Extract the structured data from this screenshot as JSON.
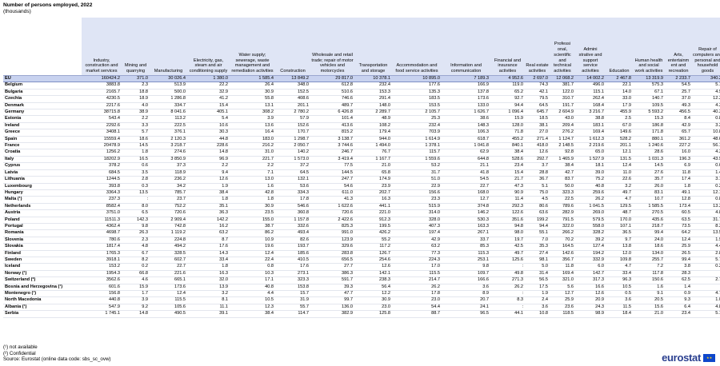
{
  "title": "Number of persons employed, 2022",
  "subtitle": "(thousands)",
  "columns": [
    "Industry, construction and market services",
    "Mining and quarrying",
    "Manufacturing",
    "Electricity, gas, steam and air conditioning supply",
    "Water supply; sewerage, waste management and remediation activities",
    "Construction",
    "Wholesale and retail trade; repair of motor vehicles and motorcycles",
    "Transportation and storage",
    "Accommodation and food service activities",
    "Information and communication",
    "Financial and insurance activities",
    "Real estate activities",
    "Professi onal, scientific and technical activities",
    "Admini strative and support service activities",
    "Education",
    "Human health and social work activities",
    "Arts, entertainm ent and recreation",
    "Repair of computers and personal and household goods",
    "Other personal service activities"
  ],
  "rows": [
    {
      "name": "EU",
      "values": [
        "160424.2",
        "371.0",
        "30 026.4",
        "1 380.0",
        "1 585.4",
        "13 849.2",
        "29 817.0",
        "10 378.1",
        "10 895.0",
        "7 189.3",
        "4 952.6",
        "2 697.0",
        "12 068.2",
        "14 002.2",
        "2 467.8",
        "13 319.9",
        "2 233.7",
        "340.2",
        "2 848.0"
      ]
    },
    {
      "name": "Belgium",
      "values": [
        "3883.8",
        "2.3",
        "513.9",
        "22.2",
        "26.4",
        "348.0",
        "612.8",
        "232.4",
        "177.6",
        "166.9",
        "119.0",
        "74.3",
        "381.7",
        "496.0",
        "22.1",
        "575.3",
        "54.5",
        "5.1",
        "53.1"
      ]
    },
    {
      "name": "Bulgaria",
      "values": [
        "2165.7",
        "18.8",
        "500.0",
        "32.9",
        "30.9",
        "152.5",
        "510.6",
        "153.3",
        "135.3",
        "137.8",
        "65.2",
        "42.1",
        "122.0",
        "115.1",
        "14.0",
        "67.1",
        "25.7",
        "4.9",
        "37.4"
      ]
    },
    {
      "name": "Czechia",
      "values": [
        "4230.5",
        "18.9",
        "1 286.8",
        "41.2",
        "55.8",
        "408.6",
        "746.6",
        "291.4",
        "183.5",
        "173.6",
        "92.7",
        "79.5",
        "310.7",
        "262.4",
        "33.0",
        "140.7",
        "37.0",
        "12.3",
        "55.6"
      ]
    },
    {
      "name": "Denmark",
      "values": [
        "2217.6",
        "4.0",
        "334.7",
        "15.4",
        "13.1",
        "201.1",
        "489.7",
        "148.0",
        "153.5",
        "133.0",
        "94.4",
        "64.5",
        "191.7",
        "168.4",
        "17.9",
        "109.5",
        "49.3",
        "4.3",
        "25.0"
      ]
    },
    {
      "name": "Germany",
      "values": [
        "38715.8",
        "38.9",
        "8 041.6",
        "405.1",
        "308.2",
        "2 780.2",
        "6 426.8",
        "2 289.7",
        "2 105.7",
        "1 626.7",
        "1 096.4",
        "645.7",
        "2 604.9",
        "3 216.7",
        "455.9",
        "5 593.2",
        "456.5",
        "40.3",
        "583.3"
      ]
    },
    {
      "name": "Estonia",
      "values": [
        "543.4",
        "2.2",
        "113.2",
        "5.4",
        "3.9",
        "57.9",
        "101.4",
        "48.9",
        "25.3",
        "38.6",
        "15.9",
        "18.5",
        "43.0",
        "38.8",
        "2.5",
        "15.3",
        "8.4",
        "0.8",
        "9.9"
      ]
    },
    {
      "name": "Ireland",
      "values": [
        "2292.6",
        "3.3",
        "222.5",
        "10.6",
        "13.6",
        "152.6",
        "413.6",
        "108.2",
        "232.4",
        "148.3",
        "128.0",
        "38.1",
        "209.4",
        "183.1",
        "67.0",
        "186.8",
        "42.9",
        "3.2",
        "43.1"
      ]
    },
    {
      "name": "Greece",
      "values": [
        "3408.1",
        "5.7",
        "376.1",
        "30.3",
        "16.4",
        "170.7",
        "815.2",
        "179.4",
        "703.9",
        "106.3",
        "71.8",
        "27.0",
        "276.2",
        "169.4",
        "149.6",
        "171.8",
        "65.7",
        "10.8",
        "66.3"
      ]
    },
    {
      "name": "Spain",
      "values": [
        "15559.4",
        "18.6",
        "2 120.3",
        "44.8",
        "183.0",
        "1 298.7",
        "3 138.7",
        "944.0",
        "1 614.9",
        "618.7",
        "455.2",
        "271.4",
        "1 124.7",
        "1 612.3",
        "528.2",
        "880.1",
        "361.2",
        "48.6",
        "296.1"
      ]
    },
    {
      "name": "France",
      "values": [
        "20478.9",
        "14.5",
        "3 218.7",
        "228.6",
        "216.2",
        "2 050.7",
        "3 744.6",
        "1 494.0",
        "1 378.1",
        "1 041.8",
        "840.1",
        "418.0",
        "2 148.5",
        "2 219.6",
        "201.1",
        "1 240.6",
        "227.2",
        "56.1",
        "400.3"
      ]
    },
    {
      "name": "Croatia",
      "values": [
        "1256.2",
        "1.8",
        "274.6",
        "14.8",
        "31.0",
        "140.2",
        "246.7",
        "76.7",
        "115.7",
        "62.9",
        "38.4",
        "12.6",
        "92.8",
        "65.0",
        "12.1",
        "28.6",
        "16.0",
        "4.3",
        "23.0"
      ]
    },
    {
      "name": "Italy",
      "values": [
        "18202.9",
        "16.5",
        "3 850.9",
        "96.9",
        "221.7",
        "1 573.0",
        "3 419.4",
        "1 167.7",
        "1 559.6",
        "644.8",
        "528.6",
        "292.7",
        "1 465.9",
        "1 527.9",
        "131.5",
        "1 031.3",
        "196.3",
        "43.9",
        "434.2"
      ]
    },
    {
      "name": "Cyprus",
      "values": [
        "378.2",
        "0.6",
        "37.3",
        "2.2",
        "2.2",
        "37.2",
        "77.5",
        "21.0",
        "53.2",
        "21.1",
        "23.4",
        "3.7",
        "38.4",
        "18.1",
        "12.4",
        "14.5",
        "6.9",
        "0.6",
        "9.0"
      ]
    },
    {
      "name": "Latvia",
      "values": [
        "684.5",
        "3.5",
        "118.9",
        "9.4",
        "7.1",
        "64.5",
        "144.5",
        "65.8",
        "31.7",
        "41.8",
        "15.4",
        "28.8",
        "42.7",
        "39.0",
        "11.0",
        "27.6",
        "11.8",
        "1.4",
        "19.5"
      ]
    },
    {
      "name": "Lithuania",
      "values": [
        "1244.5",
        "2.8",
        "236.2",
        "12.6",
        "13.0",
        "132.1",
        "247.7",
        "174.9",
        "51.0",
        "54.5",
        "21.7",
        "36.7",
        "83.7",
        "75.2",
        "22.6",
        "35.7",
        "17.4",
        "3.1",
        "23.6"
      ]
    },
    {
      "name": "Luxembourg",
      "values": [
        "393.8",
        "0.3",
        "34.2",
        "1.9",
        "1.6",
        "53.6",
        "54.6",
        "23.9",
        "22.9",
        "22.7",
        "47.3",
        "5.1",
        "50.0",
        "40.8",
        "3.2",
        "26.0",
        "1.8",
        "0.2",
        "6.2"
      ]
    },
    {
      "name": "Hungary",
      "values": [
        "3364.3",
        "13.5",
        "785.7",
        "38.4",
        "42.8",
        "334.3",
        "611.0",
        "202.7",
        "156.6",
        "168.0",
        "90.9",
        "75.0",
        "323.3",
        "259.6",
        "49.7",
        "83.1",
        "49.1",
        "12.1",
        "78.6"
      ]
    },
    {
      "name": "Malta (¹)",
      "values": [
        "237.3",
        ":",
        "23.7",
        "1.8",
        "1.8",
        "17.8",
        "41.3",
        "16.3",
        "23.3",
        "12.7",
        "11.4",
        "4.5",
        "22.5",
        "26.2",
        "4.7",
        "10.7",
        "12.8",
        "0.8",
        "4.7"
      ]
    },
    {
      "name": "Netherlands",
      "values": [
        "8582.4",
        "8.0",
        "752.2",
        "35.1",
        "30.9",
        "546.6",
        "1 622.6",
        "441.1",
        "515.9",
        "374.8",
        "292.3",
        "80.6",
        "789.6",
        "1 041.5",
        "129.5",
        "1 585.5",
        "173.4",
        "13.3",
        "129.4"
      ]
    },
    {
      "name": "Austria",
      "values": [
        "3751.0",
        "6.5",
        "720.6",
        "36.3",
        "23.5",
        "360.8",
        "720.6",
        "221.0",
        "314.0",
        "146.2",
        "122.6",
        "63.6",
        "282.9",
        "269.0",
        "48.7",
        "270.5",
        "60.5",
        "4.8",
        "50.1"
      ]
    },
    {
      "name": "Poland",
      "values": [
        "11511.3",
        "142.3",
        "2 909.4",
        "142.2",
        "155.0",
        "1 157.8",
        "2 422.6",
        "912.3",
        "328.0",
        "530.3",
        "351.6",
        "199.2",
        "791.5",
        "579.5",
        "170.0",
        "435.6",
        "63.5",
        "31.7",
        "188.8"
      ]
    },
    {
      "name": "Portugal",
      "values": [
        "4362.4",
        "9.8",
        "742.8",
        "16.2",
        "38.7",
        "332.6",
        "825.3",
        "199.5",
        "407.3",
        "163.3",
        "94.8",
        "94.4",
        "322.0",
        "558.0",
        "107.1",
        "218.7",
        "73.5",
        "8.3",
        "84.0"
      ]
    },
    {
      "name": "Romania",
      "values": [
        "4698.7",
        "26.3",
        "1 119.2",
        "63.2",
        "86.2",
        "493.4",
        "991.0",
        "426.2",
        "197.4",
        "267.1",
        "98.0",
        "55.1",
        "266.2",
        "328.2",
        "36.5",
        "99.4",
        "64.2",
        "13.5",
        "67.1"
      ]
    },
    {
      "name": "Slovenia",
      "values": [
        "780.6",
        "2.3",
        "224.8",
        "8.7",
        "10.9",
        "82.6",
        "123.9",
        "55.2",
        "42.9",
        "33.7",
        "19.7",
        "7.0",
        "70.2",
        "39.2",
        "9.7",
        "24.0",
        "12.4",
        "1.9",
        "11.4"
      ]
    },
    {
      "name": "Slovakia",
      "values": [
        "1817.4",
        "4.8",
        "494.2",
        "17.6",
        "19.6",
        "193.7",
        "329.6",
        "117.2",
        "63.2",
        "85.3",
        "42.5",
        "35.3",
        "164.5",
        "127.4",
        "13.8",
        "18.6",
        "25.9",
        "4.4",
        "25.9"
      ]
    },
    {
      "name": "Finland",
      "values": [
        "1765.3",
        "6.7",
        "328.5",
        "14.3",
        "12.4",
        "185.6",
        "283.8",
        "126.7",
        "77.3",
        "115.3",
        "49.7",
        "27.4",
        "142.6",
        "194.2",
        "12.0",
        "134.0",
        "26.5",
        "2.8",
        "25.1"
      ]
    },
    {
      "name": "Sweden",
      "values": [
        "3918.1",
        "8.2",
        "602.7",
        "33.4",
        "22.4",
        "410.5",
        "656.5",
        "254.6",
        "224.3",
        "253.1",
        "125.6",
        "98.1",
        "356.7",
        "332.9",
        "109.8",
        "255.7",
        "99.4",
        "5.7",
        "68.5"
      ]
    },
    {
      "name": "Iceland",
      "values": [
        "153.2",
        "0.2",
        "22.7",
        "1.8",
        "0.8",
        "17.6",
        "27.7",
        "12.6",
        "17.0",
        "9.8",
        ":",
        "5.0",
        "11.8",
        "6.0",
        "4.7",
        "7.2",
        "3.8",
        "0.2",
        "3.3"
      ]
    },
    {
      "name": "Norway (¹)",
      "values": [
        "1954.3",
        "66.8",
        "221.6",
        "16.3",
        "10.3",
        "273.1",
        "386.3",
        "142.1",
        "115.5",
        "109.7",
        "49.8",
        "31.4",
        "169.4",
        "142.7",
        "33.4",
        "117.8",
        "28.3",
        ":",
        "35.9"
      ]
    },
    {
      "name": "Switzerland (²)",
      "values": [
        "3562.6",
        "4.6",
        "665.1",
        "32.0",
        "17.1",
        "323.3",
        "591.7",
        "238.3",
        "214.7",
        "166.6",
        "271.3",
        "56.5",
        "321.0",
        "317.3",
        "96.3",
        "150.6",
        "62.5",
        "2.7",
        "30.9"
      ]
    },
    {
      "name": "Bosnia and Herzegovina (¹)",
      "values": [
        "601.6",
        "15.9",
        "173.6",
        "13.9",
        "40.8",
        "153.8",
        "39.3",
        "56.4",
        "26.2",
        "3.6",
        "26.2",
        "17.5",
        "5.6",
        "16.6",
        "10.5",
        "1.6",
        "1.4",
        ":",
        "8.9"
      ]
    },
    {
      "name": "Montenegro (¹)",
      "values": [
        "156.8",
        "1.7",
        "12.4",
        "3.2",
        "4.4",
        "15.7",
        "47.7",
        "12.2",
        "17.8",
        "8.9",
        ":",
        "1.9",
        "12.7",
        "12.6",
        "0.5",
        "9.1",
        "0.9",
        "4.7",
        ":"
      ]
    },
    {
      "name": "North Macedonia",
      "values": [
        "440.8",
        "3.9",
        "115.5",
        "8.1",
        "10.5",
        "31.9",
        "99.7",
        "30.9",
        "23.0",
        "20.7",
        "8.3",
        "2.4",
        "25.9",
        "20.9",
        "3.6",
        "20.5",
        "9.3",
        "1.0",
        "4.8"
      ]
    },
    {
      "name": "Albania (¹)",
      "values": [
        "547.9",
        "9.2",
        "105.6",
        "11.1",
        "12.3",
        "55.7",
        "136.0",
        "23.0",
        "54.4",
        "24.1",
        ":",
        "3.6",
        "23.6",
        "24.3",
        "11.5",
        "15.6",
        "6.4",
        "4.8",
        "9.3"
      ]
    },
    {
      "name": "Serbia",
      "values": [
        "1 745.1",
        "14.8",
        "490.5",
        "39.1",
        "38.4",
        "114.7",
        "382.9",
        "125.8",
        "88.7",
        "96.5",
        "44.1",
        "10.8",
        "118.5",
        "98.9",
        "18.4",
        "21.0",
        "23.4",
        "5.1",
        "13.6"
      ]
    }
  ],
  "notes": [
    "(¹) not available",
    "(²) Confidential",
    "Source: Eurostat (online data code: sbs_sc_ovw)"
  ],
  "logo_text": "eurostat",
  "colors": {
    "header_bg": "#dfe5f5",
    "eu_row_bg": "#c8d2ef",
    "logo": "#2a3f8f",
    "flag": "#0e47cb"
  }
}
